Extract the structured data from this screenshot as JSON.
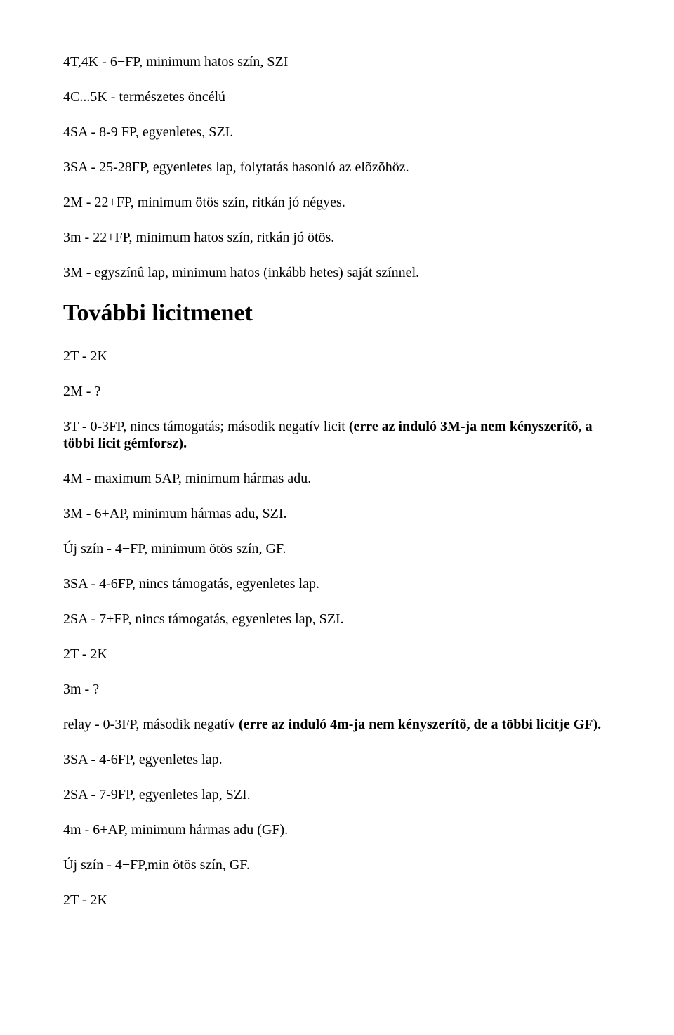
{
  "lines": {
    "l1": "4T,4K - 6+FP, minimum hatos szín, SZI",
    "l2": "4C...5K - természetes öncélú",
    "l3": "4SA - 8-9 FP, egyenletes, SZI.",
    "l4": "3SA - 25-28FP, egyenletes lap, folytatás hasonló az elõzõhöz.",
    "l5": "2M - 22+FP, minimum ötös szín, ritkán jó négyes.",
    "l6": "3m - 22+FP, minimum hatos szín, ritkán jó ötös.",
    "l7": "3M - egyszínû lap, minimum hatos (inkább hetes) saját színnel.",
    "h1": "További licitmenet",
    "l8": "2T - 2K",
    "l9": "2M - ?",
    "l10a": "3T - 0-3FP, nincs támogatás; második negatív licit ",
    "l10b": "(erre az induló 3M-ja nem kényszerítõ, a többi licit gémforsz).",
    "l11": "4M - maximum 5AP, minimum hármas adu.",
    "l12": "3M - 6+AP, minimum hármas adu, SZI.",
    "l13": "Új szín - 4+FP, minimum ötös szín, GF.",
    "l14": "3SA - 4-6FP, nincs támogatás, egyenletes lap.",
    "l15": "2SA - 7+FP, nincs támogatás, egyenletes lap, SZI.",
    "l16": "2T - 2K",
    "l17": "3m - ?",
    "l18a": "relay - 0-3FP, második negatív ",
    "l18b": "(erre az induló 4m-ja nem kényszerítõ, de a többi licitje GF).",
    "l19": "3SA - 4-6FP, egyenletes lap.",
    "l20": "2SA - 7-9FP, egyenletes lap, SZI.",
    "l21": "4m - 6+AP, minimum hármas adu (GF).",
    "l22": "Új szín - 4+FP,min ötös szín, GF.",
    "l23": "2T - 2K"
  }
}
